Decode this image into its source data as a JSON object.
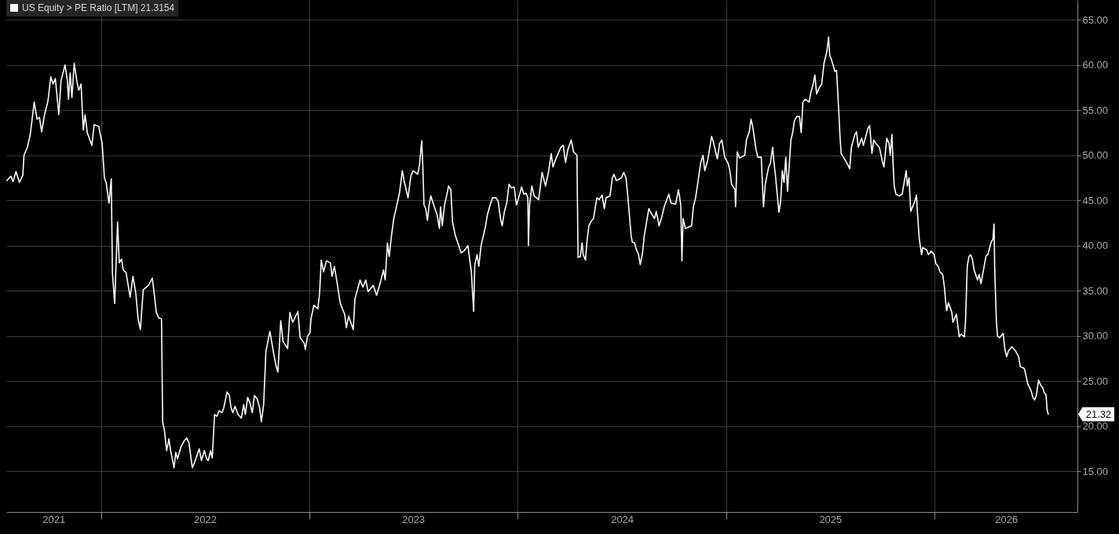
{
  "chart_data": {
    "type": "line",
    "x": [
      "2021-07-20",
      "2021-07-27",
      "2021-07-31",
      "2021-08-05",
      "2021-08-11",
      "2021-08-17",
      "2021-08-19",
      "2021-08-25",
      "2021-08-30",
      "2021-09-06",
      "2021-09-11",
      "2021-09-15",
      "2021-09-19",
      "2021-09-24",
      "2021-09-30",
      "2021-10-05",
      "2021-10-09",
      "2021-10-13",
      "2021-10-19",
      "2021-10-23",
      "2021-10-30",
      "2021-11-03",
      "2021-11-05",
      "2021-11-08",
      "2021-11-11",
      "2021-11-15",
      "2021-11-20",
      "2021-11-23",
      "2021-11-27",
      "2021-12-01",
      "2021-12-04",
      "2021-12-08",
      "2021-12-16",
      "2021-12-20",
      "2021-12-28",
      "2022-01-03",
      "2022-01-07",
      "2022-01-10",
      "2022-01-15",
      "2022-01-19",
      "2022-01-21",
      "2022-01-25",
      "2022-01-30",
      "2022-02-02",
      "2022-02-06",
      "2022-02-09",
      "2022-02-14",
      "2022-02-21",
      "2022-02-26",
      "2022-03-03",
      "2022-03-07",
      "2022-03-11",
      "2022-03-16",
      "2022-03-25",
      "2022-04-01",
      "2022-04-08",
      "2022-04-12",
      "2022-04-17",
      "2022-04-19",
      "2022-04-22",
      "2022-04-26",
      "2022-04-30",
      "2022-05-03",
      "2022-05-09",
      "2022-05-12",
      "2022-05-15",
      "2022-05-21",
      "2022-05-27",
      "2022-05-31",
      "2022-06-04",
      "2022-06-10",
      "2022-06-14",
      "2022-06-22",
      "2022-06-26",
      "2022-07-01",
      "2022-07-05",
      "2022-07-08",
      "2022-07-12",
      "2022-07-15",
      "2022-07-19",
      "2022-07-23",
      "2022-07-27",
      "2022-08-01",
      "2022-08-04",
      "2022-08-10",
      "2022-08-14",
      "2022-08-17",
      "2022-08-20",
      "2022-08-24",
      "2022-08-29",
      "2022-09-04",
      "2022-09-08",
      "2022-09-11",
      "2022-09-15",
      "2022-09-19",
      "2022-09-23",
      "2022-09-27",
      "2022-10-02",
      "2022-10-06",
      "2022-10-09",
      "2022-10-13",
      "2022-10-17",
      "2022-10-24",
      "2022-10-31",
      "2022-11-04",
      "2022-11-07",
      "2022-11-12",
      "2022-11-16",
      "2022-11-24",
      "2022-11-28",
      "2022-12-03",
      "2022-12-12",
      "2022-12-16",
      "2022-12-23",
      "2022-12-25",
      "2022-12-29",
      "2023-01-02",
      "2023-01-04",
      "2023-01-09",
      "2023-01-16",
      "2023-01-19",
      "2023-01-22",
      "2023-01-26",
      "2023-01-31",
      "2023-02-07",
      "2023-02-10",
      "2023-02-14",
      "2023-02-19",
      "2023-02-24",
      "2023-02-28",
      "2023-03-04",
      "2023-03-07",
      "2023-03-11",
      "2023-03-19",
      "2023-03-22",
      "2023-03-31",
      "2023-04-05",
      "2023-04-10",
      "2023-04-14",
      "2023-04-23",
      "2023-04-29",
      "2023-05-05",
      "2023-05-11",
      "2023-05-14",
      "2023-05-18",
      "2023-05-21",
      "2023-05-25",
      "2023-05-29",
      "2023-06-01",
      "2023-06-08",
      "2023-06-13",
      "2023-06-16",
      "2023-06-23",
      "2023-06-28",
      "2023-07-02",
      "2023-07-10",
      "2023-07-13",
      "2023-07-17",
      "2023-07-19",
      "2023-07-21",
      "2023-07-24",
      "2023-07-27",
      "2023-07-30",
      "2023-08-02",
      "2023-08-06",
      "2023-08-13",
      "2023-08-17",
      "2023-08-19",
      "2023-08-22",
      "2023-08-26",
      "2023-08-30",
      "2023-09-02",
      "2023-09-06",
      "2023-09-09",
      "2023-09-14",
      "2023-09-20",
      "2023-09-24",
      "2023-09-29",
      "2023-10-06",
      "2023-10-09",
      "2023-10-12",
      "2023-10-16",
      "2023-10-18",
      "2023-10-22",
      "2023-10-25",
      "2023-10-29",
      "2023-11-02",
      "2023-11-06",
      "2023-11-09",
      "2023-11-13",
      "2023-11-18",
      "2023-11-24",
      "2023-11-28",
      "2023-12-02",
      "2023-12-05",
      "2023-12-09",
      "2023-12-13",
      "2023-12-17",
      "2023-12-21",
      "2023-12-26",
      "2023-12-30",
      "2024-01-03",
      "2024-01-08",
      "2024-01-12",
      "2024-01-16",
      "2024-01-19",
      "2024-01-20",
      "2024-01-22",
      "2024-01-26",
      "2024-01-30",
      "2024-02-07",
      "2024-02-13",
      "2024-02-19",
      "2024-02-24",
      "2024-02-29",
      "2024-03-03",
      "2024-03-08",
      "2024-03-17",
      "2024-03-21",
      "2024-03-25",
      "2024-03-29",
      "2024-04-04",
      "2024-04-08",
      "2024-04-14",
      "2024-04-16",
      "2024-04-20",
      "2024-04-23",
      "2024-04-25",
      "2024-04-29",
      "2024-05-02",
      "2024-05-05",
      "2024-05-09",
      "2024-05-13",
      "2024-05-19",
      "2024-05-23",
      "2024-05-28",
      "2024-06-01",
      "2024-06-04",
      "2024-06-11",
      "2024-06-15",
      "2024-06-18",
      "2024-06-22",
      "2024-07-01",
      "2024-07-05",
      "2024-07-09",
      "2024-07-12",
      "2024-07-18",
      "2024-07-20",
      "2024-07-24",
      "2024-07-27",
      "2024-07-31",
      "2024-08-03",
      "2024-08-07",
      "2024-08-10",
      "2024-08-13",
      "2024-08-18",
      "2024-08-22",
      "2024-08-28",
      "2024-08-31",
      "2024-09-05",
      "2024-09-09",
      "2024-09-14",
      "2024-09-22",
      "2024-09-26",
      "2024-10-04",
      "2024-10-09",
      "2024-10-13",
      "2024-10-15",
      "2024-10-17",
      "2024-10-21",
      "2024-11-01",
      "2024-11-04",
      "2024-11-08",
      "2024-11-11",
      "2024-11-17",
      "2024-11-21",
      "2024-11-24",
      "2024-11-29",
      "2024-12-03",
      "2024-12-06",
      "2024-12-09",
      "2024-12-16",
      "2024-12-20",
      "2024-12-24",
      "2024-12-29",
      "2025-01-04",
      "2025-01-07",
      "2025-01-10",
      "2025-01-16",
      "2025-01-17",
      "2025-01-20",
      "2025-01-24",
      "2025-02-02",
      "2025-02-05",
      "2025-02-10",
      "2025-02-13",
      "2025-02-16",
      "2025-02-22",
      "2025-02-25",
      "2025-03-03",
      "2025-03-06",
      "2025-03-07",
      "2025-03-10",
      "2025-03-16",
      "2025-03-19",
      "2025-03-23",
      "2025-03-25",
      "2025-03-28",
      "2025-04-03",
      "2025-04-06",
      "2025-04-09",
      "2025-04-12",
      "2025-04-15",
      "2025-04-18",
      "2025-04-24",
      "2025-04-27",
      "2025-04-30",
      "2025-05-04",
      "2025-05-09",
      "2025-05-12",
      "2025-05-15",
      "2025-05-19",
      "2025-05-26",
      "2025-05-29",
      "2025-06-02",
      "2025-06-05",
      "2025-06-08",
      "2025-06-12",
      "2025-06-17",
      "2025-06-21",
      "2025-06-26",
      "2025-06-29",
      "2025-07-01",
      "2025-07-04",
      "2025-07-10",
      "2025-07-13",
      "2025-07-17",
      "2025-07-19",
      "2025-07-21",
      "2025-07-27",
      "2025-08-02",
      "2025-08-05",
      "2025-08-08",
      "2025-08-14",
      "2025-08-17",
      "2025-08-20",
      "2025-08-26",
      "2025-08-29",
      "2025-09-03",
      "2025-09-06",
      "2025-09-09",
      "2025-09-13",
      "2025-09-16",
      "2025-09-20",
      "2025-09-26",
      "2025-10-01",
      "2025-10-04",
      "2025-10-07",
      "2025-10-09",
      "2025-10-13",
      "2025-10-15",
      "2025-10-18",
      "2025-10-20",
      "2025-10-22",
      "2025-10-25",
      "2025-10-31",
      "2025-11-05",
      "2025-11-09",
      "2025-11-12",
      "2025-11-14",
      "2025-11-17",
      "2025-11-20",
      "2025-11-27",
      "2025-11-30",
      "2025-12-02",
      "2025-12-05",
      "2025-12-09",
      "2025-12-11",
      "2025-12-18",
      "2025-12-21",
      "2025-12-26",
      "2025-12-31",
      "2026-01-03",
      "2026-01-07",
      "2026-01-10",
      "2026-01-15",
      "2026-01-18",
      "2026-01-20",
      "2026-01-22",
      "2026-01-25",
      "2026-01-31",
      "2026-02-02",
      "2026-02-08",
      "2026-02-13",
      "2026-02-16",
      "2026-02-22",
      "2026-02-24",
      "2026-02-27",
      "2026-03-02",
      "2026-03-05",
      "2026-03-08",
      "2026-03-11",
      "2026-03-17",
      "2026-03-20",
      "2026-03-23",
      "2026-03-26",
      "2026-04-01",
      "2026-04-04",
      "2026-04-10",
      "2026-04-13",
      "2026-04-15",
      "2026-04-16",
      "2026-04-19",
      "2026-04-21",
      "2026-04-25",
      "2026-05-01",
      "2026-05-04",
      "2026-05-07",
      "2026-05-10",
      "2026-05-16",
      "2026-05-23",
      "2026-05-28",
      "2026-05-31",
      "2026-06-07",
      "2026-06-10",
      "2026-06-13",
      "2026-06-19",
      "2026-06-22",
      "2026-06-25",
      "2026-06-28",
      "2026-07-02",
      "2026-07-06",
      "2026-07-09",
      "2026-07-12",
      "2026-07-15",
      "2026-07-17",
      "2026-07-19"
    ],
    "series": [
      {
        "name": "US Equity > PE Ratio [LTM] 21.3154",
        "color": "#ffffff",
        "values": [
          47.2,
          47.7,
          47.1,
          48.2,
          47.0,
          47.8,
          50.0,
          50.9,
          52.3,
          55.9,
          54.0,
          54.2,
          52.6,
          54.5,
          56.0,
          58.7,
          57.9,
          58.5,
          54.5,
          58.3,
          60.0,
          58.3,
          56.2,
          59.1,
          56.4,
          60.2,
          58.1,
          57.2,
          57.9,
          52.8,
          54.5,
          52.5,
          51.1,
          53.4,
          53.2,
          51.3,
          47.5,
          47.0,
          44.7,
          47.4,
          37.0,
          33.6,
          42.6,
          38.1,
          38.5,
          37.3,
          37.0,
          34.3,
          36.6,
          34.7,
          31.9,
          30.7,
          35.1,
          35.6,
          36.4,
          32.6,
          32.0,
          31.9,
          20.5,
          19.6,
          17.3,
          18.6,
          17.3,
          15.4,
          17.1,
          16.4,
          17.7,
          18.4,
          18.7,
          18.2,
          15.4,
          16.0,
          17.5,
          16.2,
          17.3,
          16.4,
          16.2,
          17.3,
          16.5,
          21.3,
          21.1,
          21.7,
          21.5,
          22.0,
          23.8,
          23.4,
          22.0,
          21.5,
          22.2,
          21.3,
          20.9,
          22.4,
          21.3,
          23.2,
          22.6,
          21.5,
          23.4,
          23.0,
          22.0,
          20.5,
          22.4,
          28.3,
          30.5,
          27.9,
          26.6,
          26.0,
          31.7,
          29.4,
          28.6,
          32.6,
          31.5,
          32.7,
          29.8,
          29.2,
          28.5,
          30.0,
          30.3,
          31.9,
          33.4,
          33.0,
          34.7,
          38.4,
          37.1,
          38.3,
          38.1,
          36.6,
          37.7,
          35.8,
          33.7,
          33.0,
          32.4,
          30.9,
          32.2,
          30.7,
          34.1,
          36.2,
          35.4,
          36.2,
          34.9,
          35.6,
          34.5,
          35.8,
          37.3,
          36.2,
          40.3,
          38.8,
          41.1,
          43.0,
          43.8,
          45.8,
          48.3,
          47.2,
          45.3,
          47.7,
          48.3,
          47.9,
          48.9,
          51.6,
          48.7,
          44.5,
          44.1,
          42.8,
          44.5,
          45.5,
          44.7,
          43.4,
          41.9,
          44.3,
          42.2,
          44.5,
          45.6,
          46.6,
          46.2,
          42.6,
          41.1,
          40.0,
          39.2,
          39.4,
          40.0,
          38.5,
          37.1,
          32.7,
          37.9,
          39.0,
          37.7,
          40.0,
          41.1,
          42.2,
          43.4,
          44.3,
          45.3,
          45.3,
          44.9,
          43.0,
          42.2,
          43.8,
          44.7,
          46.8,
          46.4,
          46.5,
          44.5,
          45.3,
          46.5,
          45.7,
          45.8,
          45.3,
          40.0,
          44.5,
          46.6,
          45.5,
          45.1,
          48.1,
          46.6,
          48.1,
          50.2,
          48.7,
          49.6,
          50.9,
          51.1,
          49.2,
          50.6,
          51.7,
          50.4,
          50.0,
          38.7,
          38.8,
          40.3,
          39.0,
          38.4,
          40.7,
          42.2,
          42.7,
          43.0,
          45.3,
          45.1,
          45.6,
          44.1,
          45.3,
          45.5,
          47.5,
          47.9,
          47.2,
          47.5,
          48.1,
          47.5,
          45.6,
          41.1,
          40.4,
          40.3,
          39.6,
          39.0,
          37.9,
          39.2,
          41.1,
          42.2,
          44.1,
          43.6,
          43.0,
          43.8,
          42.2,
          43.0,
          44.3,
          45.7,
          44.7,
          44.6,
          46.2,
          44.5,
          38.3,
          43.0,
          41.9,
          42.2,
          44.3,
          45.3,
          46.6,
          49.2,
          50.0,
          48.3,
          49.4,
          50.9,
          52.1,
          51.5,
          49.6,
          51.3,
          51.7,
          49.8,
          49.1,
          48.3,
          46.8,
          46.2,
          44.3,
          50.4,
          49.7,
          50.0,
          51.7,
          52.6,
          54.0,
          53.2,
          50.6,
          49.8,
          49.8,
          45.5,
          44.3,
          46.8,
          48.7,
          49.1,
          50.9,
          49.4,
          47.7,
          43.7,
          44.9,
          48.3,
          47.0,
          49.8,
          46.0,
          51.7,
          52.5,
          53.8,
          54.3,
          54.3,
          52.5,
          55.9,
          56.2,
          55.9,
          57.0,
          57.9,
          58.9,
          56.8,
          57.4,
          57.9,
          60.2,
          61.5,
          63.1,
          61.1,
          60.6,
          59.3,
          59.4,
          54.7,
          52.1,
          50.2,
          49.6,
          48.9,
          48.5,
          50.9,
          52.3,
          52.6,
          50.9,
          51.9,
          51.1,
          52.3,
          53.0,
          53.3,
          50.2,
          51.7,
          51.3,
          50.9,
          49.4,
          48.7,
          50.6,
          51.9,
          51.3,
          50.0,
          52.3,
          49.1,
          46.6,
          45.7,
          45.5,
          45.7,
          47.2,
          48.3,
          46.6,
          47.5,
          43.8,
          44.9,
          45.6,
          43.4,
          40.7,
          39.0,
          39.8,
          39.5,
          39.0,
          39.4,
          39.0,
          38.0,
          37.7,
          37.1,
          36.8,
          35.4,
          33.9,
          32.8,
          33.7,
          32.6,
          31.5,
          32.4,
          29.9,
          30.2,
          29.9,
          31.7,
          37.7,
          38.8,
          39.0,
          38.5,
          37.3,
          36.2,
          36.8,
          35.8,
          36.8,
          38.9,
          39.0,
          40.4,
          40.7,
          42.4,
          37.7,
          31.7,
          30.0,
          29.8,
          30.3,
          28.5,
          27.7,
          28.3,
          28.8,
          28.3,
          27.7,
          26.6,
          26.4,
          25.6,
          24.7,
          23.9,
          23.2,
          22.9,
          23.4,
          25.1,
          24.5,
          24.3,
          23.7,
          23.5,
          21.8,
          21.32
        ]
      }
    ],
    "xlim": [
      "2021-07-19",
      "2026-09-08"
    ],
    "xticks": [
      {
        "value": "2021-10-10",
        "label": "2021"
      },
      {
        "value": "2022-01-01",
        "label": null
      },
      {
        "value": "2022-07-02",
        "label": "2022"
      },
      {
        "value": "2023-01-01",
        "label": null
      },
      {
        "value": "2023-07-02",
        "label": "2023"
      },
      {
        "value": "2024-01-01",
        "label": null
      },
      {
        "value": "2024-07-02",
        "label": "2024"
      },
      {
        "value": "2025-01-01",
        "label": null
      },
      {
        "value": "2025-07-02",
        "label": "2025"
      },
      {
        "value": "2026-01-01",
        "label": null
      },
      {
        "value": "2026-05-06",
        "label": "2026"
      }
    ],
    "ylim": [
      10.5,
      67.2
    ],
    "yticks": [
      {
        "value": 15,
        "label": "15.00"
      },
      {
        "value": 20,
        "label": "20.00"
      },
      {
        "value": 25,
        "label": "25.00"
      },
      {
        "value": 30,
        "label": "30.00"
      },
      {
        "value": 35,
        "label": "35.00"
      },
      {
        "value": 40,
        "label": "40.00"
      },
      {
        "value": 45,
        "label": "45.00"
      },
      {
        "value": 50,
        "label": "50.00"
      },
      {
        "value": 55,
        "label": "55.00"
      },
      {
        "value": 60,
        "label": "60.00"
      },
      {
        "value": 65,
        "label": "65.00"
      }
    ],
    "grid": true,
    "legend": "top left",
    "annotations": [
      "21.32"
    ]
  }
}
